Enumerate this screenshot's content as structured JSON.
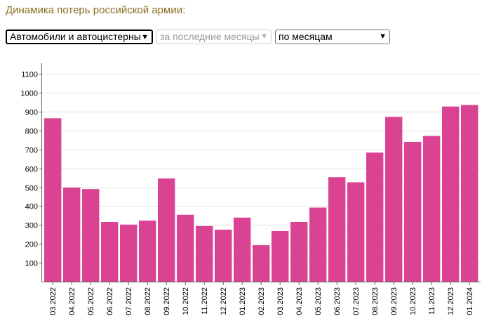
{
  "heading": "Динамика потерь российской армии:",
  "controls": {
    "category": "Автомобили и автоцистерны",
    "period": "за последние месяцы",
    "grouping": "по месяцам"
  },
  "colors": {
    "bar": "#d94392",
    "heading": "#8a6d1e",
    "grid": "#e0e0e0"
  },
  "chart_data": {
    "type": "bar",
    "categories": [
      "03.2022",
      "04.2022",
      "05.2022",
      "06.2022",
      "07.2022",
      "08.2022",
      "09.2022",
      "10.2022",
      "11.2022",
      "12.2022",
      "01.2023",
      "02.2023",
      "03.2023",
      "04.2023",
      "05.2023",
      "06.2023",
      "07.2023",
      "08.2023",
      "09.2023",
      "10.2023",
      "11.2023",
      "12.2023",
      "01.2024"
    ],
    "values": [
      865,
      498,
      490,
      316,
      302,
      323,
      546,
      354,
      294,
      275,
      339,
      193,
      268,
      316,
      392,
      553,
      526,
      683,
      872,
      740,
      771,
      927,
      935
    ],
    "yticks": [
      100,
      200,
      300,
      400,
      500,
      600,
      700,
      800,
      900,
      1000,
      1100
    ],
    "ylim": [
      0,
      1150
    ],
    "grid": true
  }
}
